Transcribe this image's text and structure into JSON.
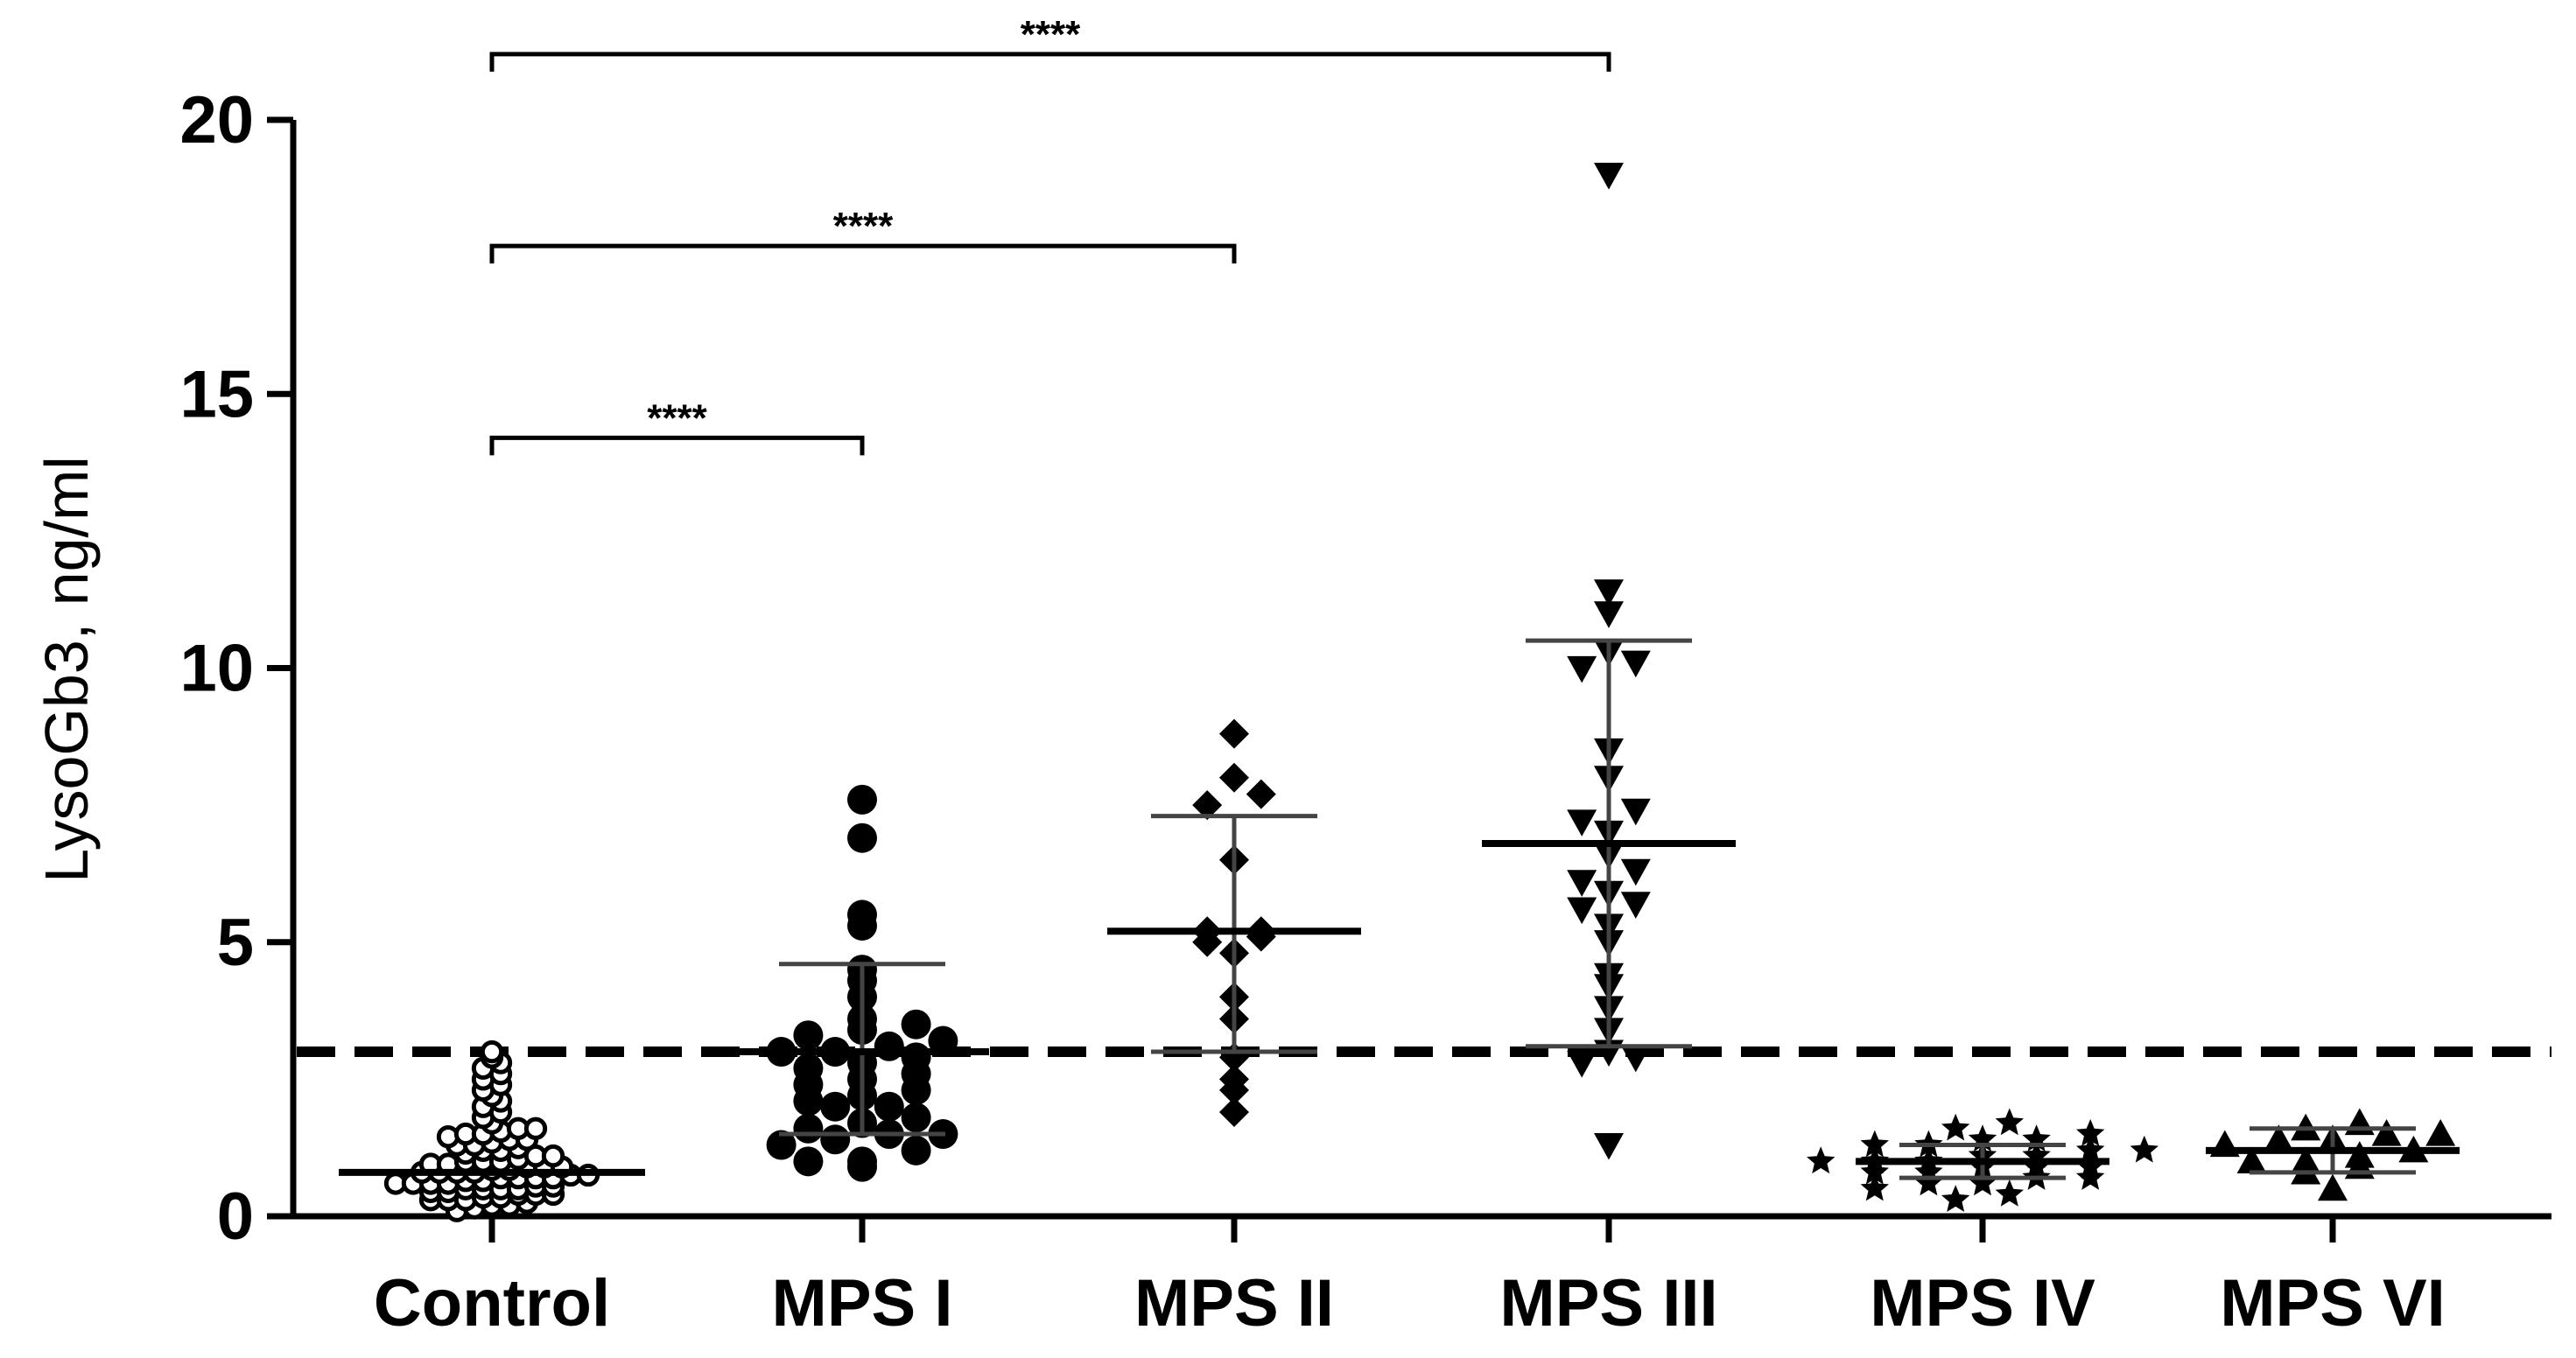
{
  "chart_data": {
    "type": "scatter",
    "title": "",
    "xlabel": "",
    "ylabel": "LysoGb3, ng/ml",
    "ylim": [
      0,
      20
    ],
    "yticks": [
      0,
      5,
      10,
      15,
      20
    ],
    "grid": false,
    "categories": [
      "Control",
      "MPS I",
      "MPS II",
      "MPS III",
      "MPS IV",
      "MPS VI"
    ],
    "threshold": 3,
    "series": [
      {
        "category": "Control",
        "marker": "open-circle",
        "color": "#000000",
        "summary": {
          "mean": 0.8,
          "sd_low": 0.8,
          "sd_high": 0.8
        },
        "values": [
          0.1,
          0.15,
          0.2,
          0.2,
          0.25,
          0.3,
          0.3,
          0.3,
          0.35,
          0.35,
          0.4,
          0.4,
          0.4,
          0.45,
          0.45,
          0.5,
          0.5,
          0.5,
          0.5,
          0.55,
          0.55,
          0.6,
          0.6,
          0.6,
          0.6,
          0.65,
          0.65,
          0.7,
          0.7,
          0.7,
          0.7,
          0.75,
          0.75,
          0.8,
          0.8,
          0.8,
          0.8,
          0.85,
          0.85,
          0.9,
          0.9,
          0.9,
          0.95,
          0.95,
          1.0,
          1.0,
          1.0,
          1.05,
          1.1,
          1.1,
          1.15,
          1.2,
          1.2,
          1.25,
          1.3,
          1.3,
          1.35,
          1.4,
          1.4,
          1.45,
          1.5,
          1.5,
          1.55,
          1.6,
          1.6,
          1.7,
          1.8,
          1.9,
          2.0,
          2.1,
          2.2,
          2.3,
          2.4,
          2.5,
          2.6,
          2.7,
          2.8,
          2.9,
          3.0
        ]
      },
      {
        "category": "MPS I",
        "marker": "filled-circle",
        "color": "#000000",
        "summary": {
          "mean": 3.0,
          "sd_low": 1.5,
          "sd_high": 4.6
        },
        "values": [
          0.9,
          1.0,
          1.0,
          1.2,
          1.3,
          1.4,
          1.5,
          1.5,
          1.6,
          1.7,
          1.8,
          2.0,
          2.0,
          2.1,
          2.2,
          2.3,
          2.4,
          2.5,
          2.6,
          2.7,
          2.8,
          2.9,
          3.0,
          3.0,
          3.1,
          3.2,
          3.3,
          3.4,
          3.5,
          3.6,
          4.0,
          4.3,
          4.5,
          5.3,
          5.5,
          6.9,
          7.6
        ]
      },
      {
        "category": "MPS II",
        "marker": "filled-diamond",
        "color": "#000000",
        "summary": {
          "mean": 5.2,
          "sd_low": 3.0,
          "sd_high": 7.3
        },
        "values": [
          1.9,
          2.3,
          2.5,
          2.9,
          3.6,
          4.0,
          4.8,
          5.0,
          5.1,
          5.2,
          5.2,
          6.5,
          7.5,
          7.7,
          8.0,
          8.8
        ]
      },
      {
        "category": "MPS III",
        "marker": "filled-triangle-down",
        "color": "#000000",
        "summary": {
          "mean": 6.8,
          "sd_low": 3.1,
          "sd_high": 10.5
        },
        "values": [
          1.3,
          2.8,
          2.9,
          3.0,
          3.4,
          3.8,
          4.2,
          4.4,
          5.0,
          5.3,
          5.6,
          5.7,
          5.9,
          6.1,
          6.3,
          6.6,
          7.0,
          7.2,
          7.4,
          8.0,
          8.5,
          10.0,
          10.1,
          10.3,
          11.0,
          11.4,
          19.0
        ]
      },
      {
        "category": "MPS IV",
        "marker": "filled-star",
        "color": "#000000",
        "summary": {
          "mean": 1.0,
          "sd_low": 0.7,
          "sd_high": 1.3
        },
        "values": [
          0.3,
          0.4,
          0.5,
          0.6,
          0.6,
          0.7,
          0.7,
          0.8,
          0.8,
          0.9,
          0.9,
          0.9,
          1.0,
          1.0,
          1.0,
          1.1,
          1.1,
          1.2,
          1.2,
          1.3,
          1.3,
          1.4,
          1.4,
          1.5,
          1.6,
          1.7
        ]
      },
      {
        "category": "MPS VI",
        "marker": "filled-triangle-up",
        "color": "#000000",
        "summary": {
          "mean": 1.2,
          "sd_low": 0.8,
          "sd_high": 1.6
        },
        "values": [
          0.5,
          0.8,
          0.9,
          1.0,
          1.0,
          1.1,
          1.2,
          1.3,
          1.4,
          1.4,
          1.5,
          1.5,
          1.6,
          1.7
        ]
      }
    ],
    "significance": [
      {
        "from": "Control",
        "to": "MPS I",
        "label": "****",
        "y": 14.2
      },
      {
        "from": "Control",
        "to": "MPS II",
        "label": "****",
        "y": 17.7
      },
      {
        "from": "Control",
        "to": "MPS III",
        "label": "****",
        "y": 21.2
      }
    ]
  }
}
